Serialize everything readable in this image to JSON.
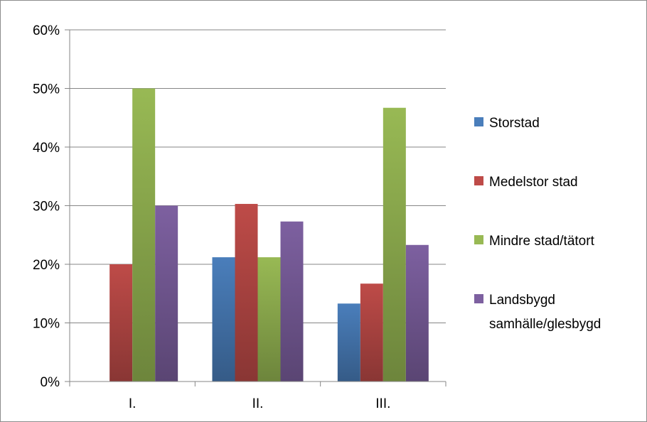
{
  "chart_data": {
    "type": "bar",
    "title": "",
    "xlabel": "",
    "ylabel": "",
    "categories": [
      "I.",
      "II.",
      "III."
    ],
    "ylim": [
      0,
      0.6
    ],
    "y_ticks": [
      {
        "value": 0,
        "label": "0%"
      },
      {
        "value": 0.1,
        "label": "10%"
      },
      {
        "value": 0.2,
        "label": "20%"
      },
      {
        "value": 0.3,
        "label": "30%"
      },
      {
        "value": 0.4,
        "label": "40%"
      },
      {
        "value": 0.5,
        "label": "50%"
      },
      {
        "value": 0.6,
        "label": "60%"
      }
    ],
    "grid": true,
    "legend_position": "right",
    "series": [
      {
        "name": "Storstad",
        "color": "#4a7ebb",
        "values": [
          0,
          0.212,
          0.133
        ]
      },
      {
        "name": "Medelstor stad",
        "color": "#be4b48",
        "values": [
          0.2,
          0.303,
          0.167
        ]
      },
      {
        "name": "Mindre stad/tätort",
        "color": "#98b954",
        "values": [
          0.5,
          0.212,
          0.467
        ]
      },
      {
        "name": "Landsbygd samhälle/glesbygd",
        "name_lines": [
          "Landsbygd",
          "samhälle/glesbygd"
        ],
        "color": "#7d60a0",
        "values": [
          0.3,
          0.273,
          0.233
        ]
      }
    ]
  }
}
